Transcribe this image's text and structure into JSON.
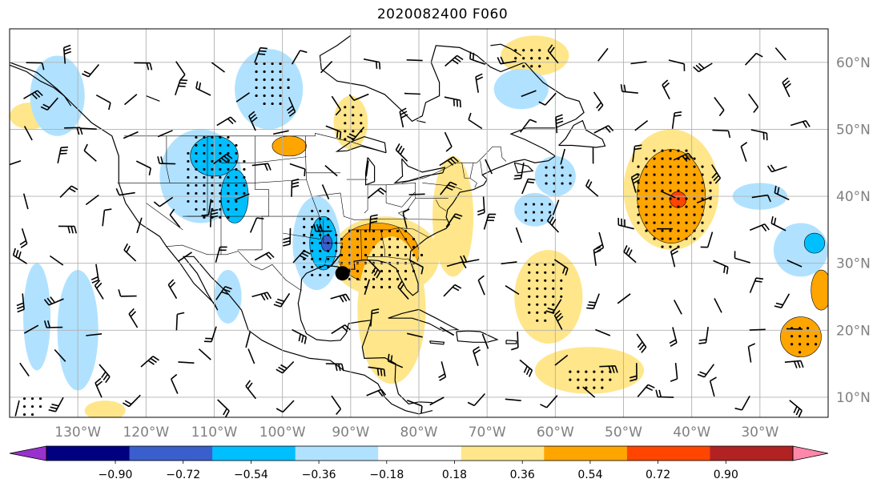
{
  "title": "2020082400 F060",
  "map": {
    "lon_range": [
      -140,
      -20
    ],
    "lat_range": [
      7,
      65
    ],
    "lon_gridlines": [
      -130,
      -120,
      -110,
      -100,
      -90,
      -80,
      -70,
      -60,
      -50,
      -40,
      -30
    ],
    "lat_gridlines": [
      10,
      20,
      30,
      40,
      50,
      60
    ],
    "lon_labels": [
      "130°W",
      "120°W",
      "110°W",
      "100°W",
      "90°W",
      "80°W",
      "70°W",
      "60°W",
      "50°W",
      "40°W",
      "30°W"
    ],
    "lat_labels": [
      "10°N",
      "20°N",
      "30°N",
      "40°N",
      "50°N",
      "60°N"
    ],
    "features": [
      "coastlines",
      "state-boundaries",
      "wind-barbs",
      "stippling",
      "filled-contours"
    ],
    "storm_center": {
      "lon": -91.2,
      "lat": 28.5
    },
    "grid_color": "#b0b0b0"
  },
  "colorbar": {
    "colors": [
      "#9932cc",
      "#000080",
      "#3a5fcd",
      "#00bfff",
      "#b0e2ff",
      "#ffffff",
      "#ffe68a",
      "#ffa500",
      "#ff4500",
      "#b22222",
      "#ff88aa"
    ],
    "ticks": [
      "−0.90",
      "−0.72",
      "−0.54",
      "−0.36",
      "−0.18",
      "0.18",
      "0.36",
      "0.54",
      "0.72",
      "0.90"
    ],
    "extend": "both"
  },
  "anomalies": [
    {
      "lon": -43,
      "lat": 41,
      "rx": 7,
      "ry": 9,
      "level": 0.3
    },
    {
      "lon": -43,
      "lat": 40,
      "rx": 5,
      "ry": 7,
      "level": 0.4
    },
    {
      "lon": -42,
      "lat": 39.5,
      "rx": 1.2,
      "ry": 1.2,
      "level": 0.6
    },
    {
      "lon": -85,
      "lat": 31,
      "rx": 8,
      "ry": 6,
      "level": 0.3
    },
    {
      "lon": -86,
      "lat": 31.5,
      "rx": 6,
      "ry": 4.5,
      "level": 0.4
    },
    {
      "lon": -84,
      "lat": 23,
      "rx": 5,
      "ry": 11,
      "level": 0.2
    },
    {
      "lon": -90,
      "lat": 51,
      "rx": 2.5,
      "ry": 4,
      "level": 0.35
    },
    {
      "lon": -99,
      "lat": 47.5,
      "rx": 2.5,
      "ry": 1.5,
      "level": 0.45
    },
    {
      "lon": -75,
      "lat": 37,
      "rx": 3,
      "ry": 9,
      "level": 0.2
    },
    {
      "lon": -63,
      "lat": 61,
      "rx": 5,
      "ry": 3,
      "level": 0.25
    },
    {
      "lon": -24,
      "lat": 19,
      "rx": 3,
      "ry": 3,
      "level": 0.4
    },
    {
      "lon": -61,
      "lat": 25,
      "rx": 5,
      "ry": 7,
      "level": 0.2
    },
    {
      "lon": -55,
      "lat": 14,
      "rx": 8,
      "ry": 3.5,
      "level": 0.2
    },
    {
      "lon": -21,
      "lat": 26,
      "rx": 1.5,
      "ry": 3,
      "level": 0.4
    },
    {
      "lon": -137,
      "lat": 52,
      "rx": 3,
      "ry": 2,
      "level": 0.2
    },
    {
      "lon": -126,
      "lat": 8,
      "rx": 3,
      "ry": 1.5,
      "level": 0.2
    },
    {
      "lon": -112,
      "lat": 43,
      "rx": 6,
      "ry": 7,
      "level": -0.25
    },
    {
      "lon": -110,
      "lat": 46,
      "rx": 3.5,
      "ry": 3,
      "level": -0.4
    },
    {
      "lon": -107,
      "lat": 40,
      "rx": 2,
      "ry": 4,
      "level": -0.4
    },
    {
      "lon": -95,
      "lat": 33,
      "rx": 3.5,
      "ry": 7,
      "level": -0.25
    },
    {
      "lon": -94,
      "lat": 33,
      "rx": 2,
      "ry": 4,
      "level": -0.4
    },
    {
      "lon": -93.5,
      "lat": 33,
      "rx": 0.8,
      "ry": 1.2,
      "level": -0.6
    },
    {
      "lon": -102,
      "lat": 56,
      "rx": 5,
      "ry": 6,
      "level": -0.25
    },
    {
      "lon": -133,
      "lat": 55,
      "rx": 4,
      "ry": 6,
      "level": -0.2
    },
    {
      "lon": -60,
      "lat": 43,
      "rx": 3,
      "ry": 3,
      "level": -0.25
    },
    {
      "lon": -63,
      "lat": 38,
      "rx": 3,
      "ry": 2.5,
      "level": -0.35
    },
    {
      "lon": -130,
      "lat": 20,
      "rx": 3,
      "ry": 9,
      "level": -0.2
    },
    {
      "lon": -136,
      "lat": 22,
      "rx": 2,
      "ry": 8,
      "level": -0.2
    },
    {
      "lon": -24,
      "lat": 32,
      "rx": 4,
      "ry": 4,
      "level": -0.2
    },
    {
      "lon": -22,
      "lat": 33,
      "rx": 1.5,
      "ry": 1.5,
      "level": -0.4
    },
    {
      "lon": -65,
      "lat": 56,
      "rx": 4,
      "ry": 3,
      "level": -0.2
    },
    {
      "lon": -30,
      "lat": 40,
      "rx": 4,
      "ry": 2,
      "level": -0.2
    },
    {
      "lon": -108,
      "lat": 25,
      "rx": 2,
      "ry": 4,
      "level": -0.2
    }
  ],
  "stipple_regions": [
    {
      "lon": -43,
      "lat": 40,
      "rx": 6,
      "ry": 8
    },
    {
      "lon": -86,
      "lat": 31,
      "rx": 6.5,
      "ry": 5
    },
    {
      "lon": -110,
      "lat": 43,
      "rx": 5,
      "ry": 7
    },
    {
      "lon": -95,
      "lat": 33,
      "rx": 3,
      "ry": 6
    },
    {
      "lon": -90,
      "lat": 51,
      "rx": 2,
      "ry": 3.5
    },
    {
      "lon": -102,
      "lat": 57,
      "rx": 3,
      "ry": 4
    },
    {
      "lon": -24,
      "lat": 19,
      "rx": 2.5,
      "ry": 2.5
    },
    {
      "lon": -62,
      "lat": 26,
      "rx": 3,
      "ry": 5
    },
    {
      "lon": -63,
      "lat": 38,
      "rx": 2.5,
      "ry": 2
    },
    {
      "lon": -60,
      "lat": 43,
      "rx": 2.5,
      "ry": 2.5
    },
    {
      "lon": -55,
      "lat": 13,
      "rx": 4,
      "ry": 2
    },
    {
      "lon": -64,
      "lat": 61,
      "rx": 3,
      "ry": 2
    },
    {
      "lon": -137,
      "lat": 9,
      "rx": 2,
      "ry": 2
    }
  ]
}
